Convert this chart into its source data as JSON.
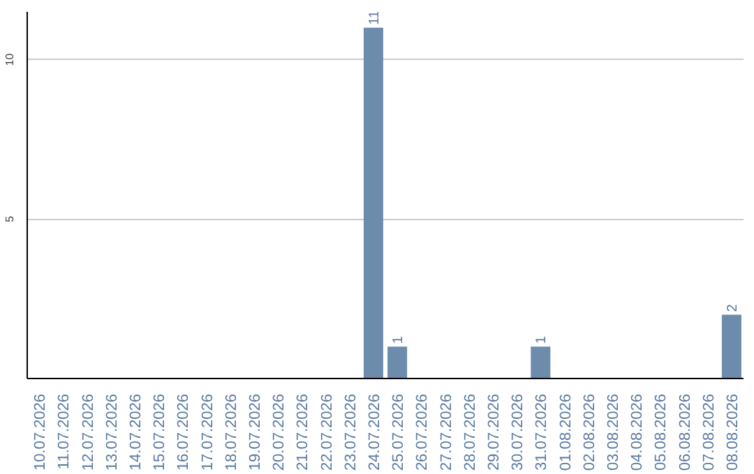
{
  "chart_data": {
    "type": "bar",
    "categories": [
      "10.07.2026",
      "11.07.2026",
      "12.07.2026",
      "13.07.2026",
      "14.07.2026",
      "15.07.2026",
      "16.07.2026",
      "17.07.2026",
      "18.07.2026",
      "19.07.2026",
      "20.07.2026",
      "21.07.2026",
      "22.07.2026",
      "23.07.2026",
      "24.07.2026",
      "25.07.2026",
      "26.07.2026",
      "27.07.2026",
      "28.07.2026",
      "29.07.2026",
      "30.07.2026",
      "31.07.2026",
      "01.08.2026",
      "02.08.2026",
      "03.08.2026",
      "04.08.2026",
      "05.08.2026",
      "06.08.2026",
      "07.08.2026",
      "08.08.2026"
    ],
    "values": [
      0,
      0,
      0,
      0,
      0,
      0,
      0,
      0,
      0,
      0,
      0,
      0,
      0,
      0,
      11,
      1,
      0,
      0,
      0,
      0,
      0,
      1,
      0,
      0,
      0,
      0,
      0,
      0,
      0,
      2
    ],
    "value_labels": [
      null,
      null,
      null,
      null,
      null,
      null,
      null,
      null,
      null,
      null,
      null,
      null,
      null,
      null,
      "11",
      "1",
      null,
      null,
      null,
      null,
      null,
      "1",
      null,
      null,
      null,
      null,
      null,
      null,
      null,
      "2"
    ],
    "color": "#6d8cad",
    "ylim": [
      0,
      11.5
    ],
    "yticks": [
      5,
      10
    ],
    "grid": "y"
  }
}
